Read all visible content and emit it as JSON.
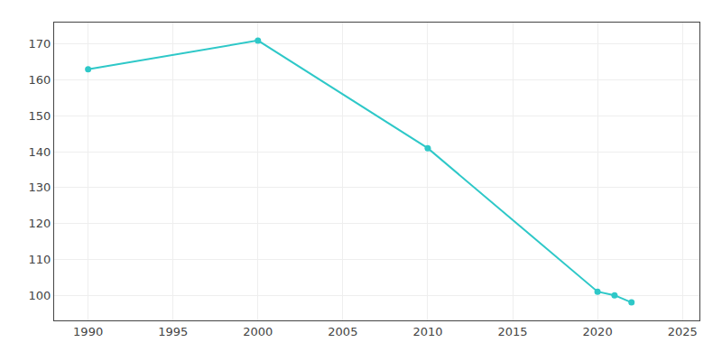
{
  "chart_data": {
    "type": "line",
    "x": [
      1990,
      2000,
      2010,
      2020,
      2021,
      2022
    ],
    "values": [
      163,
      171,
      141,
      101,
      100,
      98
    ],
    "color": "#2ec8c8",
    "marker": "circle",
    "xlim": [
      1988,
      2026
    ],
    "xticks": [
      1990,
      1995,
      2000,
      2005,
      2010,
      2015,
      2020,
      2025
    ],
    "ylim": [
      93,
      176
    ],
    "yticks": [
      100,
      110,
      120,
      130,
      140,
      150,
      160,
      170
    ],
    "grid": true
  }
}
